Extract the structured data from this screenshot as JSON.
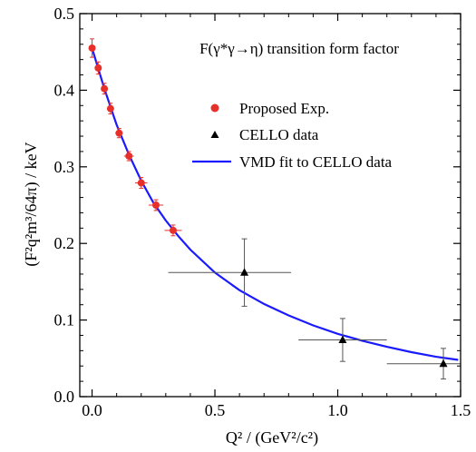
{
  "chart_data": {
    "type": "scatter",
    "title": "F(γ*γ→η) transition form factor",
    "xlabel": "Q² / (GeV²/c²)",
    "ylabel": "(F²q²m³/64π) / keV",
    "xlim": [
      -0.05,
      1.5
    ],
    "ylim": [
      0.0,
      0.5
    ],
    "x_ticks": [
      0.0,
      0.5,
      1.0,
      1.5
    ],
    "x_tick_labels": [
      "0.0",
      "0.5",
      "1.0",
      "1.5"
    ],
    "y_ticks": [
      0.0,
      0.1,
      0.2,
      0.3,
      0.4,
      0.5
    ],
    "y_tick_labels": [
      "0.0",
      "0.1",
      "0.2",
      "0.3",
      "0.4",
      "0.5"
    ],
    "grid": false,
    "legend_placement": "top-right",
    "series": [
      {
        "name": "Proposed Exp.",
        "marker": "circle",
        "color": "#e8302b",
        "points": [
          {
            "x": 0.0,
            "y": 0.455,
            "xerr": 0.01,
            "yerr": 0.012
          },
          {
            "x": 0.025,
            "y": 0.429,
            "xerr": 0.01,
            "yerr": 0.008
          },
          {
            "x": 0.05,
            "y": 0.402,
            "xerr": 0.012,
            "yerr": 0.007
          },
          {
            "x": 0.075,
            "y": 0.376,
            "xerr": 0.012,
            "yerr": 0.007
          },
          {
            "x": 0.11,
            "y": 0.344,
            "xerr": 0.015,
            "yerr": 0.006
          },
          {
            "x": 0.15,
            "y": 0.314,
            "xerr": 0.02,
            "yerr": 0.006
          },
          {
            "x": 0.2,
            "y": 0.279,
            "xerr": 0.025,
            "yerr": 0.007
          },
          {
            "x": 0.26,
            "y": 0.25,
            "xerr": 0.03,
            "yerr": 0.007
          },
          {
            "x": 0.33,
            "y": 0.217,
            "xerr": 0.035,
            "yerr": 0.007
          }
        ]
      },
      {
        "name": "CELLO data",
        "marker": "triangle",
        "color": "#000000",
        "points": [
          {
            "x": 0.62,
            "y": 0.162,
            "xerr_low": 0.31,
            "xerr_high": 0.19,
            "yerr": 0.044
          },
          {
            "x": 1.02,
            "y": 0.074,
            "xerr_low": 0.18,
            "xerr_high": 0.18,
            "yerr": 0.028
          },
          {
            "x": 1.43,
            "y": 0.043,
            "xerr_low": 0.23,
            "xerr_high": 0.07,
            "yerr": 0.02
          }
        ]
      },
      {
        "name": "VMD fit to CELLO data",
        "line": true,
        "color": "#1a1aff",
        "points": [
          {
            "x": 0.0,
            "y": 0.455
          },
          {
            "x": 0.05,
            "y": 0.402
          },
          {
            "x": 0.1,
            "y": 0.355
          },
          {
            "x": 0.15,
            "y": 0.316
          },
          {
            "x": 0.2,
            "y": 0.282
          },
          {
            "x": 0.25,
            "y": 0.253
          },
          {
            "x": 0.3,
            "y": 0.23
          },
          {
            "x": 0.35,
            "y": 0.21
          },
          {
            "x": 0.4,
            "y": 0.192
          },
          {
            "x": 0.5,
            "y": 0.162
          },
          {
            "x": 0.6,
            "y": 0.139
          },
          {
            "x": 0.7,
            "y": 0.121
          },
          {
            "x": 0.8,
            "y": 0.106
          },
          {
            "x": 0.9,
            "y": 0.093
          },
          {
            "x": 1.0,
            "y": 0.082
          },
          {
            "x": 1.1,
            "y": 0.073
          },
          {
            "x": 1.2,
            "y": 0.065
          },
          {
            "x": 1.3,
            "y": 0.058
          },
          {
            "x": 1.4,
            "y": 0.052
          },
          {
            "x": 1.49,
            "y": 0.048
          }
        ]
      }
    ]
  }
}
